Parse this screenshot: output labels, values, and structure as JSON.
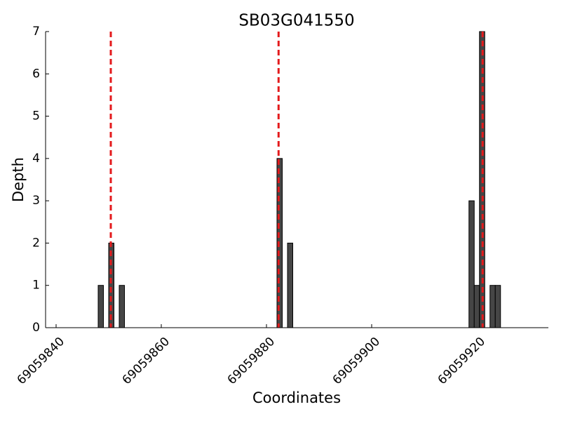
{
  "chart_data": {
    "type": "bar",
    "title": "SB03G041550",
    "x_label": "Coordinates",
    "y_label": "Depth",
    "x": [
      69059848.5,
      69059850.5,
      69059852.5,
      69059882.5,
      69059884.5,
      69059919,
      69059920,
      69059921,
      69059923,
      69059924
    ],
    "values": [
      1,
      2,
      1,
      4,
      2,
      3,
      1,
      7,
      1,
      1
    ],
    "color": "#464646",
    "edge_color": "#000000",
    "vlines": [
      69059850.4,
      69059882.3,
      69059921.1
    ],
    "vline_color": "#e41a1c",
    "xlim": [
      69059838,
      69059933.6
    ],
    "xticks": [
      69059840,
      69059860,
      69059880,
      69059900,
      69059920
    ],
    "ylim": [
      0,
      7
    ],
    "yticks": [
      0,
      1,
      2,
      3,
      4,
      5,
      6,
      7
    ],
    "grid": false
  }
}
